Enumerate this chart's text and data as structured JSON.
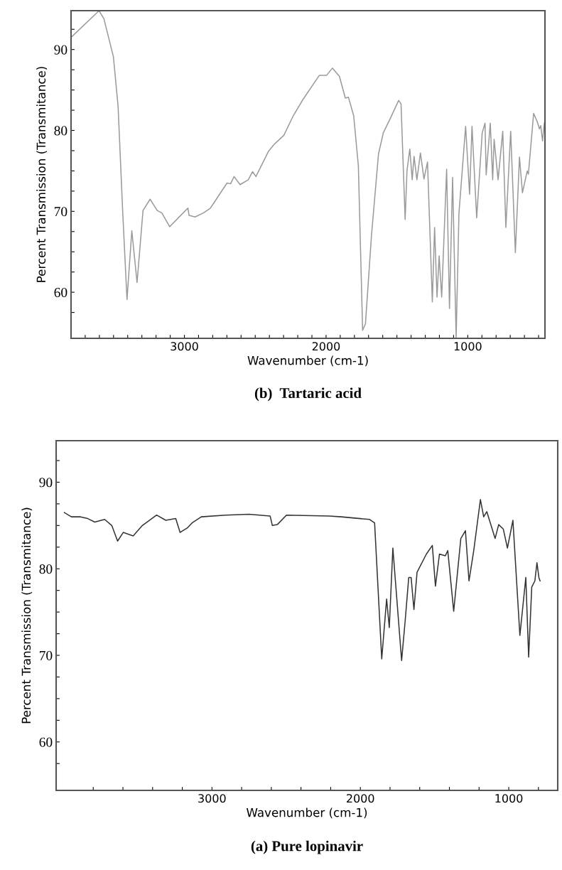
{
  "chart_data": [
    {
      "type": "line",
      "title": "(b)  Tartaric acid",
      "xlabel": "Wavenumber (cm-1)",
      "ylabel": "Percent Transmission (Transmitance)",
      "grid": false,
      "marker": "none",
      "line_style": "solid",
      "xlim": [
        3800,
        455
      ],
      "ylim": [
        54.3,
        94.8
      ],
      "xticks": [
        {
          "value": 3700,
          "label": null
        },
        {
          "value": 3600,
          "label": null
        },
        {
          "value": 3500,
          "label": null
        },
        {
          "value": 3400,
          "label": null
        },
        {
          "value": 3300,
          "label": null
        },
        {
          "value": 3200,
          "label": null
        },
        {
          "value": 3100,
          "label": null
        },
        3000,
        {
          "value": 2900,
          "label": null
        },
        {
          "value": 2800,
          "label": null
        },
        {
          "value": 2700,
          "label": null
        },
        {
          "value": 2600,
          "label": null
        },
        {
          "value": 2500,
          "label": null
        },
        {
          "value": 2400,
          "label": null
        },
        {
          "value": 2300,
          "label": null
        },
        {
          "value": 2200,
          "label": null
        },
        {
          "value": 2100,
          "label": null
        },
        2000,
        {
          "value": 1900,
          "label": null
        },
        {
          "value": 1800,
          "label": null
        },
        {
          "value": 1700,
          "label": null
        },
        {
          "value": 1600,
          "label": null
        },
        {
          "value": 1500,
          "label": null
        },
        {
          "value": 1400,
          "label": null
        },
        {
          "value": 1300,
          "label": null
        },
        {
          "value": 1200,
          "label": null
        },
        {
          "value": 1100,
          "label": null
        },
        1000,
        {
          "value": 900,
          "label": null
        },
        {
          "value": 800,
          "label": null
        },
        {
          "value": 700,
          "label": null
        },
        {
          "value": 600,
          "label": null
        },
        {
          "value": 500,
          "label": null
        }
      ],
      "yticks": [
        {
          "value": 57.5,
          "label": null
        },
        60,
        {
          "value": 62.5,
          "label": null
        },
        {
          "value": 65,
          "label": null
        },
        {
          "value": 67.5,
          "label": null
        },
        70,
        {
          "value": 72.5,
          "label": null
        },
        {
          "value": 75,
          "label": null
        },
        {
          "value": 77.5,
          "label": null
        },
        80,
        {
          "value": 82.5,
          "label": null
        },
        {
          "value": 85,
          "label": null
        },
        {
          "value": 87.5,
          "label": null
        },
        90,
        {
          "value": 92.5,
          "label": null
        }
      ],
      "series": [
        {
          "color": "#9a9a9a",
          "x": [
            3800,
            3602,
            3568,
            3501,
            3468,
            3435,
            3405,
            3371,
            3334,
            3292,
            3242,
            3192,
            3159,
            3104,
            2975,
            2967,
            2925,
            2866,
            2816,
            2699,
            2674,
            2649,
            2607,
            2549,
            2519,
            2495,
            2407,
            2365,
            2298,
            2232,
            2164,
            2048,
            1997,
            1956,
            1906,
            1864,
            1842,
            1805,
            1772,
            1742,
            1722,
            1680,
            1630,
            1596,
            1546,
            1488,
            1471,
            1442,
            1429,
            1409,
            1392,
            1379,
            1359,
            1334,
            1309,
            1284,
            1250,
            1234,
            1217,
            1202,
            1184,
            1149,
            1129,
            1107,
            1082,
            1062,
            1015,
            987,
            970,
            937,
            898,
            878,
            870,
            841,
            824,
            814,
            786,
            753,
            731,
            697,
            664,
            635,
            614,
            580,
            572,
            535,
            510,
            494,
            485,
            472,
            460
          ],
          "values": [
            91.5,
            94.8,
            93.8,
            89.1,
            83.0,
            69.8,
            59.1,
            67.6,
            61.2,
            70.1,
            71.5,
            70.1,
            69.8,
            68.1,
            70.4,
            69.5,
            69.3,
            69.8,
            70.4,
            73.5,
            73.4,
            74.3,
            73.3,
            73.9,
            74.9,
            74.3,
            77.4,
            78.3,
            79.4,
            81.8,
            83.8,
            86.8,
            86.8,
            87.7,
            86.7,
            84.0,
            84.1,
            81.8,
            75.6,
            55.3,
            56.1,
            66.9,
            77.1,
            79.7,
            81.5,
            83.7,
            83.3,
            69.0,
            75.0,
            77.7,
            73.9,
            76.8,
            73.9,
            77.2,
            74.0,
            76.1,
            58.8,
            68.0,
            59.4,
            64.5,
            59.4,
            75.2,
            58.0,
            74.2,
            54.4,
            69.8,
            80.5,
            72.1,
            80.5,
            69.2,
            79.7,
            80.9,
            74.5,
            80.9,
            73.9,
            78.9,
            73.9,
            79.9,
            68.0,
            79.9,
            64.9,
            76.7,
            72.3,
            75.0,
            74.6,
            82.1,
            81.1,
            80.2,
            80.6,
            78.7,
            80.9
          ]
        }
      ]
    },
    {
      "type": "line",
      "title": "(a) Pure lopinavir",
      "xlabel": "Wavenumber (cm-1)",
      "ylabel": "Percent Transmission (Transmitance)",
      "grid": false,
      "marker": "none",
      "line_style": "solid",
      "xlim": [
        4050,
        670
      ],
      "ylim": [
        54.4,
        94.8
      ],
      "xticks": [
        {
          "value": 3800,
          "label": null
        },
        {
          "value": 3600,
          "label": null
        },
        {
          "value": 3400,
          "label": null
        },
        {
          "value": 3200,
          "label": null
        },
        3000,
        {
          "value": 2800,
          "label": null
        },
        {
          "value": 2600,
          "label": null
        },
        {
          "value": 2400,
          "label": null
        },
        {
          "value": 2200,
          "label": null
        },
        2000,
        {
          "value": 1800,
          "label": null
        },
        {
          "value": 1600,
          "label": null
        },
        {
          "value": 1400,
          "label": null
        },
        {
          "value": 1200,
          "label": null
        },
        1000,
        {
          "value": 800,
          "label": null
        }
      ],
      "yticks": [
        {
          "value": 57.5,
          "label": null
        },
        60,
        {
          "value": 62.5,
          "label": null
        },
        {
          "value": 65,
          "label": null
        },
        {
          "value": 67.5,
          "label": null
        },
        70,
        {
          "value": 72.5,
          "label": null
        },
        {
          "value": 75,
          "label": null
        },
        {
          "value": 77.5,
          "label": null
        },
        80,
        {
          "value": 82.5,
          "label": null
        },
        {
          "value": 85,
          "label": null
        },
        {
          "value": 87.5,
          "label": null
        },
        90,
        {
          "value": 92.5,
          "label": null
        }
      ],
      "series": [
        {
          "color": "#333333",
          "x": [
            3995,
            3947,
            3885,
            3837,
            3790,
            3723,
            3675,
            3636,
            3598,
            3531,
            3469,
            3373,
            3311,
            3244,
            3215,
            3167,
            3134,
            3072,
            2909,
            2751,
            2608,
            2593,
            2560,
            2498,
            2210,
            2129,
            1938,
            1904,
            1856,
            1823,
            1805,
            1781,
            1722,
            1698,
            1674,
            1658,
            1639,
            1618,
            1555,
            1515,
            1494,
            1467,
            1427,
            1411,
            1371,
            1323,
            1292,
            1268,
            1236,
            1191,
            1169,
            1148,
            1092,
            1068,
            1037,
            1009,
            972,
            925,
            885,
            866,
            845,
            824,
            810,
            797,
            789
          ],
          "values": [
            86.5,
            86.0,
            86.0,
            85.8,
            85.4,
            85.7,
            85.0,
            83.2,
            84.2,
            83.8,
            85.0,
            86.2,
            85.6,
            85.8,
            84.2,
            84.7,
            85.3,
            86.0,
            86.2,
            86.3,
            86.1,
            85.0,
            85.1,
            86.2,
            86.1,
            86.0,
            85.7,
            85.3,
            69.6,
            76.5,
            73.2,
            82.4,
            69.4,
            74.0,
            79.0,
            79.0,
            75.3,
            79.6,
            81.7,
            82.7,
            78.0,
            81.7,
            81.5,
            82.1,
            75.1,
            83.5,
            84.4,
            78.6,
            82.1,
            88.0,
            86.0,
            86.6,
            83.5,
            85.1,
            84.6,
            82.4,
            85.6,
            72.3,
            79.0,
            69.8,
            77.9,
            78.6,
            80.7,
            79.0,
            78.6
          ]
        }
      ]
    }
  ]
}
